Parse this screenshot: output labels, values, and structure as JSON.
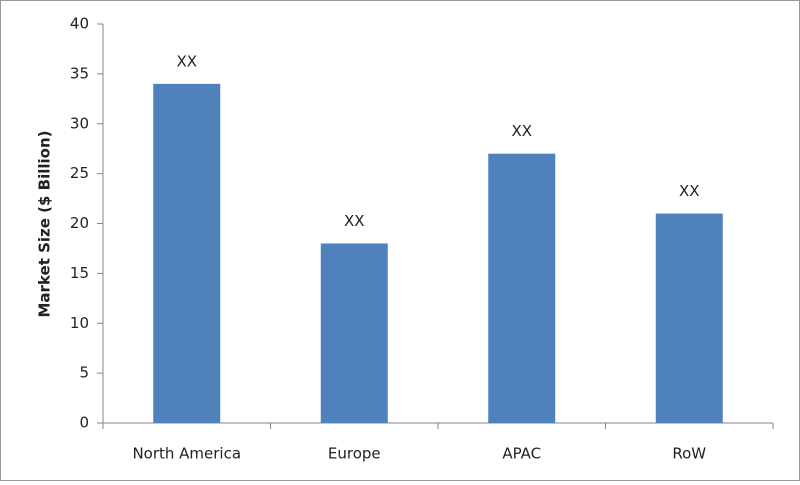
{
  "chart_data": {
    "type": "bar",
    "y_label": "Market Size ($ Billion)",
    "categories": [
      "North America",
      "Europe",
      "APAC",
      "RoW"
    ],
    "values": [
      34,
      18,
      27,
      21
    ],
    "value_labels": [
      "XX",
      "XX",
      "XX",
      "XX"
    ],
    "color": "#4f81bd",
    "ylim": [
      0,
      40
    ],
    "yticks": [
      0,
      5,
      10,
      15,
      20,
      25,
      30,
      35,
      40
    ],
    "grid": false
  }
}
